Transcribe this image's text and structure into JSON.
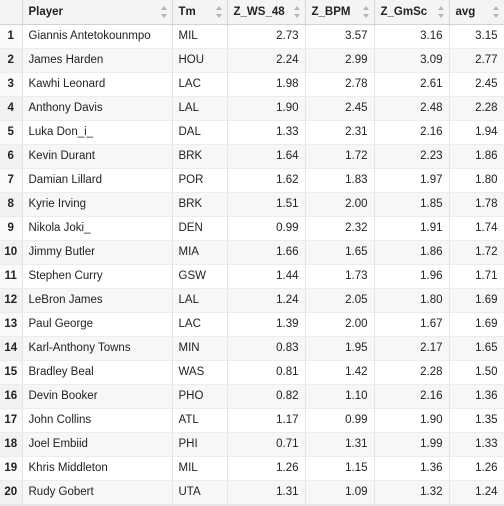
{
  "table": {
    "columns": [
      {
        "key": "idx",
        "label": ""
      },
      {
        "key": "player",
        "label": "Player"
      },
      {
        "key": "tm",
        "label": "Tm"
      },
      {
        "key": "z_ws_48",
        "label": "Z_WS_48"
      },
      {
        "key": "z_bpm",
        "label": "Z_BPM"
      },
      {
        "key": "z_gmsc",
        "label": "Z_GmSc"
      },
      {
        "key": "avg",
        "label": "avg"
      }
    ],
    "rows": [
      [
        "1",
        "Giannis Antetokounmpo",
        "MIL",
        "2.73",
        "3.57",
        "3.16",
        "3.15"
      ],
      [
        "2",
        "James Harden",
        "HOU",
        "2.24",
        "2.99",
        "3.09",
        "2.77"
      ],
      [
        "3",
        "Kawhi Leonard",
        "LAC",
        "1.98",
        "2.78",
        "2.61",
        "2.45"
      ],
      [
        "4",
        "Anthony Davis",
        "LAL",
        "1.90",
        "2.45",
        "2.48",
        "2.28"
      ],
      [
        "5",
        "Luka Don_i_",
        "DAL",
        "1.33",
        "2.31",
        "2.16",
        "1.94"
      ],
      [
        "6",
        "Kevin Durant",
        "BRK",
        "1.64",
        "1.72",
        "2.23",
        "1.86"
      ],
      [
        "7",
        "Damian Lillard",
        "POR",
        "1.62",
        "1.83",
        "1.97",
        "1.80"
      ],
      [
        "8",
        "Kyrie Irving",
        "BRK",
        "1.51",
        "2.00",
        "1.85",
        "1.78"
      ],
      [
        "9",
        "Nikola Joki_",
        "DEN",
        "0.99",
        "2.32",
        "1.91",
        "1.74"
      ],
      [
        "10",
        "Jimmy Butler",
        "MIA",
        "1.66",
        "1.65",
        "1.86",
        "1.72"
      ],
      [
        "11",
        "Stephen Curry",
        "GSW",
        "1.44",
        "1.73",
        "1.96",
        "1.71"
      ],
      [
        "12",
        "LeBron James",
        "LAL",
        "1.24",
        "2.05",
        "1.80",
        "1.69"
      ],
      [
        "13",
        "Paul George",
        "LAC",
        "1.39",
        "2.00",
        "1.67",
        "1.69"
      ],
      [
        "14",
        "Karl-Anthony Towns",
        "MIN",
        "0.83",
        "1.95",
        "2.17",
        "1.65"
      ],
      [
        "15",
        "Bradley Beal",
        "WAS",
        "0.81",
        "1.42",
        "2.28",
        "1.50"
      ],
      [
        "16",
        "Devin Booker",
        "PHO",
        "0.82",
        "1.10",
        "2.16",
        "1.36"
      ],
      [
        "17",
        "John Collins",
        "ATL",
        "1.17",
        "0.99",
        "1.90",
        "1.35"
      ],
      [
        "18",
        "Joel Embiid",
        "PHI",
        "0.71",
        "1.31",
        "1.99",
        "1.33"
      ],
      [
        "19",
        "Khris Middleton",
        "MIL",
        "1.26",
        "1.15",
        "1.36",
        "1.26"
      ],
      [
        "20",
        "Rudy Gobert",
        "UTA",
        "1.31",
        "1.09",
        "1.32",
        "1.24"
      ]
    ]
  }
}
